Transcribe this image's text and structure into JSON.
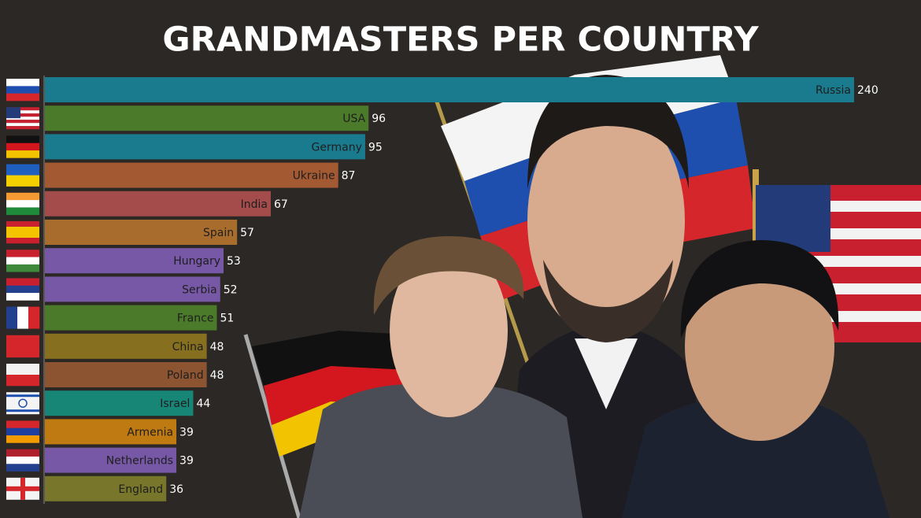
{
  "chart_data": {
    "type": "bar",
    "orientation": "horizontal",
    "title": "GRANDMASTERS PER COUNTRY",
    "categories": [
      "Russia",
      "USA",
      "Germany",
      "Ukraine",
      "India",
      "Spain",
      "Hungary",
      "Serbia",
      "France",
      "China",
      "Poland",
      "Israel",
      "Armenia",
      "Netherlands",
      "England"
    ],
    "values": [
      240,
      96,
      95,
      87,
      67,
      57,
      53,
      52,
      51,
      48,
      48,
      44,
      39,
      39,
      36
    ],
    "colors": [
      "#1b7b8e",
      "#4b7a2b",
      "#1b7b8e",
      "#a35a32",
      "#a44b4b",
      "#a86d2c",
      "#7758a6",
      "#7758a6",
      "#4b7a2b",
      "#86701f",
      "#8c5431",
      "#178677",
      "#c07a12",
      "#7758a6",
      "#77762b"
    ]
  }
}
